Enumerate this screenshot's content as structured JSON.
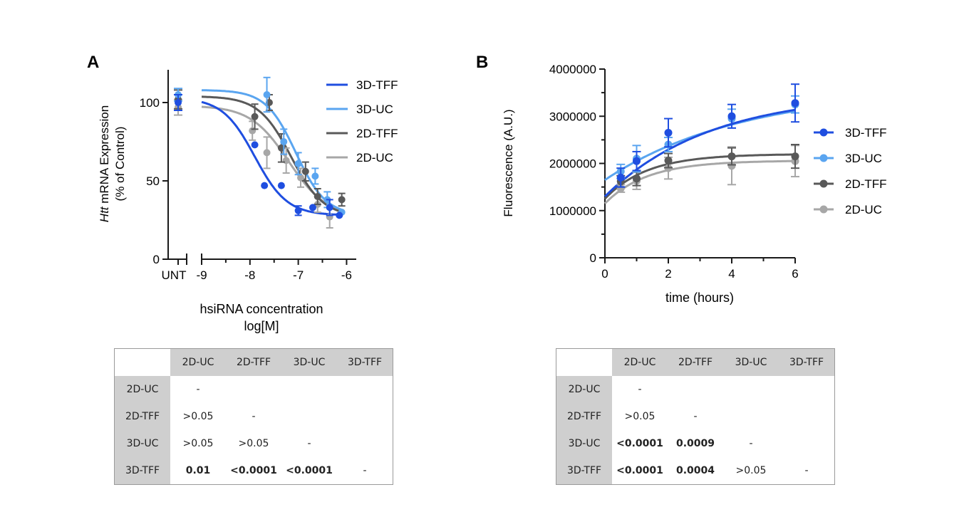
{
  "colors": {
    "3D-TFF": "#1f4ee0",
    "3D-UC": "#5aa5f0",
    "2D-TFF": "#595959",
    "2D-UC": "#a7a7a7"
  },
  "chart_data": [
    {
      "panel": "A",
      "type": "line",
      "xlabel_line1": "hsiRNA concentration",
      "xlabel_line2": "log[M]",
      "ylabel_italic": "Htt",
      "ylabel_rest": " mRNA Expression",
      "ylabel_line2": "(% of Control)",
      "xlim": [
        -9,
        -5.8
      ],
      "ylim": [
        0,
        120
      ],
      "x_ticks": [
        -9,
        -8,
        -7,
        -6
      ],
      "x_tick_labels": [
        "-9",
        "-8",
        "-7",
        "-6"
      ],
      "y_ticks": [
        0,
        50,
        100
      ],
      "y_tick_labels": [
        "0",
        "50",
        "100"
      ],
      "untreated_label": "UNT",
      "legend_position": "top-right",
      "series": [
        {
          "name": "3D-TFF",
          "unt": 100,
          "unt_err": 5,
          "fit": {
            "top": 103,
            "bottom": 28,
            "logec50": -7.9,
            "hill": 1.3
          },
          "points": [
            {
              "x": -7.9,
              "y": 73
            },
            {
              "x": -7.7,
              "y": 47
            },
            {
              "x": -7.35,
              "y": 47
            },
            {
              "x": -7.0,
              "y": 31,
              "err": 3
            },
            {
              "x": -6.7,
              "y": 33
            },
            {
              "x": -6.35,
              "y": 33,
              "err": 5
            },
            {
              "x": -6.15,
              "y": 28
            }
          ]
        },
        {
          "name": "3D-UC",
          "unt": 105,
          "unt_err": 4,
          "fit": {
            "top": 108,
            "bottom": 28,
            "logec50": -7.05,
            "hill": 1.4
          },
          "points": [
            {
              "x": -7.65,
              "y": 105,
              "err": 11
            },
            {
              "x": -7.3,
              "y": 75,
              "err": 8
            },
            {
              "x": -7.0,
              "y": 61,
              "err": 7
            },
            {
              "x": -6.65,
              "y": 53,
              "err": 5
            },
            {
              "x": -6.4,
              "y": 38,
              "err": 5
            },
            {
              "x": -6.1,
              "y": 30
            }
          ]
        },
        {
          "name": "2D-TFF",
          "unt": 102,
          "unt_err": 6,
          "fit": {
            "top": 104,
            "bottom": 27,
            "logec50": -7.15,
            "hill": 1.3
          },
          "points": [
            {
              "x": -7.9,
              "y": 91,
              "err": 8
            },
            {
              "x": -7.6,
              "y": 100,
              "err": 5
            },
            {
              "x": -7.35,
              "y": 71,
              "err": 9
            },
            {
              "x": -6.85,
              "y": 56,
              "err": 6
            },
            {
              "x": -6.6,
              "y": 40,
              "err": 5
            },
            {
              "x": -6.1,
              "y": 38,
              "err": 4
            }
          ]
        },
        {
          "name": "2D-UC",
          "unt": 97,
          "unt_err": 5,
          "fit": {
            "top": 98,
            "bottom": 27,
            "logec50": -7.2,
            "hill": 1.1
          },
          "points": [
            {
              "x": -7.95,
              "y": 82,
              "err": 6
            },
            {
              "x": -7.65,
              "y": 68,
              "err": 10
            },
            {
              "x": -7.25,
              "y": 63,
              "err": 8
            },
            {
              "x": -6.95,
              "y": 52,
              "err": 6
            },
            {
              "x": -6.6,
              "y": 35,
              "err": 5
            },
            {
              "x": -6.35,
              "y": 27,
              "err": 7
            }
          ]
        }
      ]
    },
    {
      "panel": "B",
      "type": "line",
      "xlabel": "time (hours)",
      "ylabel": "Fluorescence (A.U.)",
      "xlim": [
        0,
        6
      ],
      "ylim": [
        0,
        4000000
      ],
      "x_ticks": [
        0,
        2,
        4,
        6
      ],
      "x_tick_labels": [
        "0",
        "2",
        "4",
        "6"
      ],
      "y_ticks": [
        0,
        1000000,
        2000000,
        3000000,
        4000000
      ],
      "y_tick_labels": [
        "0",
        "1000000",
        "2000000",
        "3000000",
        "4000000"
      ],
      "legend_position": "right",
      "series": [
        {
          "name": "3D-TFF",
          "fit": {
            "y0": 1300000,
            "plateau": 3500000,
            "k": 0.3
          },
          "points": [
            {
              "x": 0.5,
              "y": 1700000,
              "err": 200000
            },
            {
              "x": 1,
              "y": 2050000,
              "err": 200000
            },
            {
              "x": 2,
              "y": 2650000,
              "err": 300000
            },
            {
              "x": 4,
              "y": 3000000,
              "err": 250000
            },
            {
              "x": 6,
              "y": 3280000,
              "err": 400000
            }
          ]
        },
        {
          "name": "3D-UC",
          "fit": {
            "y0": 1650000,
            "plateau": 3600000,
            "k": 0.23
          },
          "points": [
            {
              "x": 0.5,
              "y": 1830000,
              "err": 150000
            },
            {
              "x": 1,
              "y": 2100000,
              "err": 280000
            },
            {
              "x": 2,
              "y": 2400000,
              "err": 150000
            },
            {
              "x": 4,
              "y": 2950000,
              "err": 200000
            },
            {
              "x": 6,
              "y": 3250000,
              "err": 180000
            }
          ]
        },
        {
          "name": "2D-TFF",
          "fit": {
            "y0": 1250000,
            "plateau": 2200000,
            "k": 0.75
          },
          "points": [
            {
              "x": 0.5,
              "y": 1620000,
              "err": 120000
            },
            {
              "x": 1,
              "y": 1680000,
              "err": 150000
            },
            {
              "x": 2,
              "y": 2060000,
              "err": 150000
            },
            {
              "x": 4,
              "y": 2150000,
              "err": 180000
            },
            {
              "x": 6,
              "y": 2150000,
              "err": 250000
            }
          ]
        },
        {
          "name": "2D-UC",
          "fit": {
            "y0": 1150000,
            "plateau": 2060000,
            "k": 0.75
          },
          "points": [
            {
              "x": 0.5,
              "y": 1470000,
              "err": 80000
            },
            {
              "x": 1,
              "y": 1630000,
              "err": 180000
            },
            {
              "x": 2,
              "y": 1900000,
              "err": 230000
            },
            {
              "x": 4,
              "y": 1950000,
              "err": 400000
            },
            {
              "x": 6,
              "y": 2050000,
              "err": 330000
            }
          ]
        }
      ]
    }
  ],
  "table_a": {
    "headers": [
      "2D-UC",
      "2D-TFF",
      "3D-UC",
      "3D-TFF"
    ],
    "rows": [
      {
        "label": "2D-UC",
        "cells": [
          {
            "v": "-"
          },
          {
            "v": ""
          },
          {
            "v": ""
          },
          {
            "v": ""
          }
        ]
      },
      {
        "label": "2D-TFF",
        "cells": [
          {
            "v": ">0.05"
          },
          {
            "v": "-"
          },
          {
            "v": ""
          },
          {
            "v": ""
          }
        ]
      },
      {
        "label": "3D-UC",
        "cells": [
          {
            "v": ">0.05"
          },
          {
            "v": ">0.05"
          },
          {
            "v": "-"
          },
          {
            "v": ""
          }
        ]
      },
      {
        "label": "3D-TFF",
        "cells": [
          {
            "v": "0.01",
            "bold": true
          },
          {
            "v": "<0.0001",
            "bold": true
          },
          {
            "v": "<0.0001",
            "bold": true
          },
          {
            "v": "-"
          }
        ]
      }
    ]
  },
  "table_b": {
    "headers": [
      "2D-UC",
      "2D-TFF",
      "3D-UC",
      "3D-TFF"
    ],
    "rows": [
      {
        "label": "2D-UC",
        "cells": [
          {
            "v": "-"
          },
          {
            "v": ""
          },
          {
            "v": ""
          },
          {
            "v": ""
          }
        ]
      },
      {
        "label": "2D-TFF",
        "cells": [
          {
            "v": ">0.05"
          },
          {
            "v": "-"
          },
          {
            "v": ""
          },
          {
            "v": ""
          }
        ]
      },
      {
        "label": "3D-UC",
        "cells": [
          {
            "v": "<0.0001",
            "bold": true
          },
          {
            "v": "0.0009",
            "bold": true
          },
          {
            "v": "-"
          },
          {
            "v": ""
          }
        ]
      },
      {
        "label": "3D-TFF",
        "cells": [
          {
            "v": "<0.0001",
            "bold": true
          },
          {
            "v": "0.0004",
            "bold": true
          },
          {
            "v": ">0.05"
          },
          {
            "v": "-"
          }
        ]
      }
    ]
  }
}
